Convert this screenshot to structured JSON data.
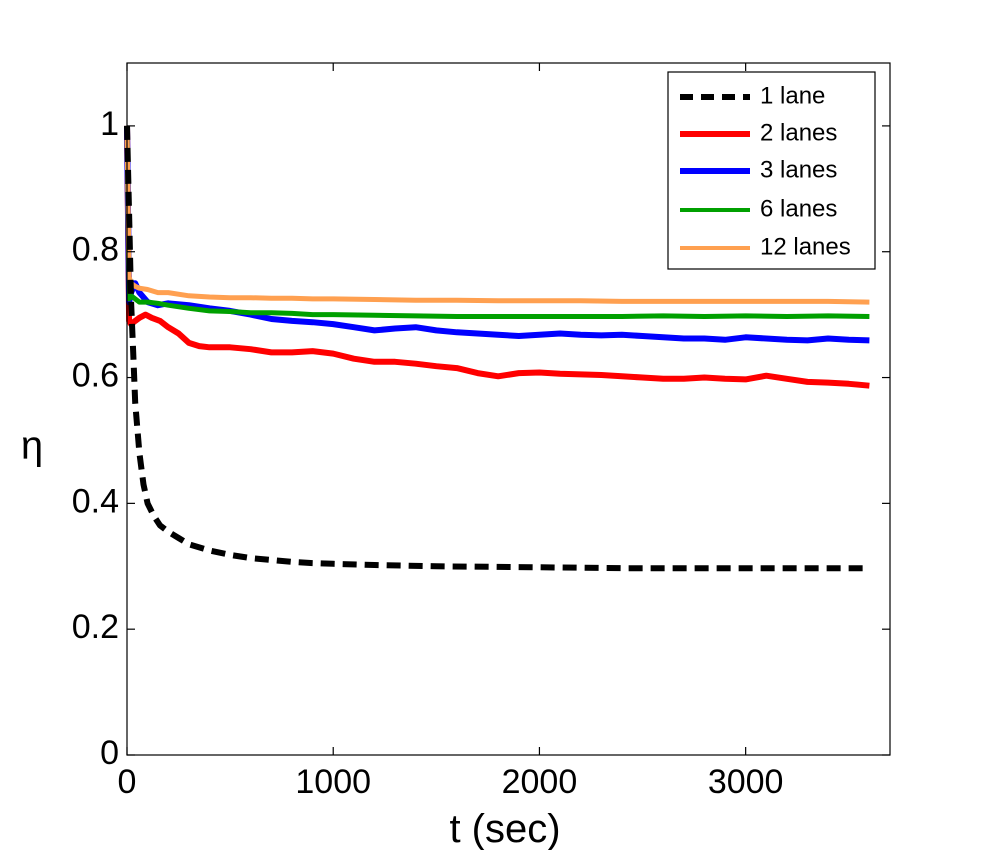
{
  "chart_data": {
    "type": "line",
    "title": "",
    "xlabel": "t (sec)",
    "ylabel": "η",
    "xlim": [
      0,
      3700
    ],
    "ylim": [
      0,
      1.1
    ],
    "xticks": [
      0,
      1000,
      2000,
      3000
    ],
    "yticks": [
      0,
      0.2,
      0.4,
      0.6,
      0.8,
      1
    ],
    "xtick_labels": [
      "0",
      "1000",
      "2000",
      "3000"
    ],
    "ytick_labels": [
      "0",
      "0.2",
      "0.4",
      "0.6",
      "0.8",
      "1"
    ],
    "grid": false,
    "legend_position": "top-right",
    "series": [
      {
        "name": "1 lane",
        "color": "#000000",
        "style": "dashed",
        "x": [
          0,
          10,
          20,
          30,
          40,
          60,
          80,
          100,
          130,
          160,
          200,
          250,
          300,
          400,
          500,
          600,
          700,
          800,
          900,
          1000,
          1200,
          1500,
          1800,
          2100,
          2400,
          2700,
          3000,
          3300,
          3600
        ],
        "y": [
          1.0,
          0.86,
          0.72,
          0.64,
          0.56,
          0.48,
          0.43,
          0.4,
          0.38,
          0.365,
          0.355,
          0.345,
          0.335,
          0.325,
          0.318,
          0.313,
          0.31,
          0.307,
          0.305,
          0.304,
          0.302,
          0.3,
          0.299,
          0.298,
          0.297,
          0.297,
          0.297,
          0.297,
          0.297
        ]
      },
      {
        "name": "2 lanes",
        "color": "#ff0000",
        "style": "solid",
        "x": [
          0,
          10,
          20,
          40,
          60,
          90,
          120,
          160,
          200,
          250,
          300,
          350,
          400,
          500,
          600,
          700,
          800,
          900,
          1000,
          1100,
          1200,
          1300,
          1400,
          1500,
          1600,
          1700,
          1800,
          1900,
          2000,
          2100,
          2200,
          2300,
          2400,
          2500,
          2600,
          2700,
          2800,
          2900,
          3000,
          3100,
          3200,
          3300,
          3400,
          3500,
          3600
        ],
        "y": [
          1.0,
          0.69,
          0.685,
          0.69,
          0.695,
          0.7,
          0.695,
          0.69,
          0.68,
          0.67,
          0.655,
          0.65,
          0.648,
          0.648,
          0.645,
          0.64,
          0.64,
          0.642,
          0.638,
          0.63,
          0.625,
          0.625,
          0.622,
          0.618,
          0.615,
          0.607,
          0.602,
          0.607,
          0.608,
          0.606,
          0.605,
          0.604,
          0.602,
          0.6,
          0.598,
          0.598,
          0.6,
          0.598,
          0.597,
          0.603,
          0.598,
          0.593,
          0.592,
          0.59,
          0.587
        ]
      },
      {
        "name": "3 lanes",
        "color": "#0000ff",
        "style": "solid",
        "x": [
          0,
          10,
          20,
          40,
          60,
          100,
          150,
          200,
          300,
          400,
          500,
          600,
          700,
          800,
          900,
          1000,
          1100,
          1200,
          1300,
          1400,
          1500,
          1600,
          1700,
          1800,
          1900,
          2000,
          2100,
          2200,
          2300,
          2400,
          2500,
          2600,
          2700,
          2800,
          2900,
          3000,
          3100,
          3200,
          3300,
          3400,
          3500,
          3600
        ],
        "y": [
          1.0,
          0.72,
          0.735,
          0.75,
          0.735,
          0.72,
          0.715,
          0.718,
          0.715,
          0.71,
          0.706,
          0.7,
          0.693,
          0.69,
          0.688,
          0.685,
          0.68,
          0.675,
          0.678,
          0.68,
          0.675,
          0.672,
          0.67,
          0.668,
          0.666,
          0.668,
          0.67,
          0.668,
          0.667,
          0.668,
          0.666,
          0.664,
          0.662,
          0.662,
          0.66,
          0.664,
          0.662,
          0.66,
          0.659,
          0.662,
          0.66,
          0.659
        ]
      },
      {
        "name": "6 lanes",
        "color": "#00a000",
        "style": "solid",
        "x": [
          0,
          10,
          20,
          40,
          60,
          100,
          150,
          200,
          300,
          400,
          500,
          600,
          700,
          800,
          900,
          1000,
          1200,
          1400,
          1600,
          1800,
          2000,
          2200,
          2400,
          2600,
          2800,
          3000,
          3200,
          3400,
          3600
        ],
        "y": [
          1.0,
          0.725,
          0.73,
          0.725,
          0.72,
          0.72,
          0.718,
          0.715,
          0.71,
          0.706,
          0.705,
          0.703,
          0.703,
          0.702,
          0.7,
          0.7,
          0.699,
          0.698,
          0.697,
          0.697,
          0.697,
          0.697,
          0.697,
          0.698,
          0.697,
          0.698,
          0.697,
          0.698,
          0.697
        ]
      },
      {
        "name": "12 lanes",
        "color": "#ffa050",
        "style": "solid",
        "x": [
          0,
          10,
          20,
          40,
          60,
          100,
          150,
          200,
          300,
          400,
          500,
          600,
          700,
          800,
          900,
          1000,
          1200,
          1400,
          1600,
          1800,
          2000,
          2200,
          2400,
          2600,
          2800,
          3000,
          3200,
          3400,
          3600
        ],
        "y": [
          1.0,
          0.76,
          0.75,
          0.745,
          0.742,
          0.74,
          0.735,
          0.735,
          0.73,
          0.728,
          0.727,
          0.727,
          0.726,
          0.726,
          0.725,
          0.725,
          0.724,
          0.723,
          0.723,
          0.722,
          0.722,
          0.722,
          0.721,
          0.721,
          0.721,
          0.721,
          0.721,
          0.721,
          0.72
        ]
      }
    ]
  }
}
